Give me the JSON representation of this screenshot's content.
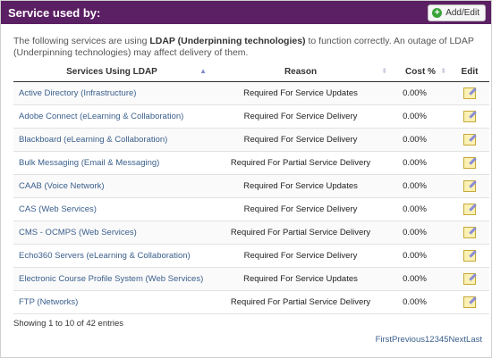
{
  "header": {
    "title": "Service used by:",
    "add_edit_label": "Add/Edit"
  },
  "description": {
    "before": "The following services are using ",
    "bold": "LDAP (Underpinning technologies)",
    "after": " to function correctly. An outage of LDAP (Underpinning technologies) may affect delivery of them."
  },
  "table": {
    "columns": {
      "service": "Services Using LDAP",
      "reason": "Reason",
      "cost": "Cost %",
      "edit": "Edit"
    },
    "rows": [
      {
        "service": "Active Directory (Infrastructure)",
        "reason": "Required For Service Updates",
        "cost": "0.00%"
      },
      {
        "service": "Adobe Connect (eLearning & Collaboration)",
        "reason": "Required For Service Delivery",
        "cost": "0.00%"
      },
      {
        "service": "Blackboard (eLearning & Collaboration)",
        "reason": "Required For Service Delivery",
        "cost": "0.00%"
      },
      {
        "service": "Bulk Messaging (Email & Messaging)",
        "reason": "Required For Partial Service Delivery",
        "cost": "0.00%"
      },
      {
        "service": "CAAB (Voice Network)",
        "reason": "Required For Service Updates",
        "cost": "0.00%"
      },
      {
        "service": "CAS (Web Services)",
        "reason": "Required For Service Delivery",
        "cost": "0.00%"
      },
      {
        "service": "CMS - OCMPS (Web Services)",
        "reason": "Required For Partial Service Delivery",
        "cost": "0.00%"
      },
      {
        "service": "Echo360 Servers (eLearning & Collaboration)",
        "reason": "Required For Service Delivery",
        "cost": "0.00%"
      },
      {
        "service": "Electronic Course Profile System (Web Services)",
        "reason": "Required For Service Updates",
        "cost": "0.00%"
      },
      {
        "service": "FTP (Networks)",
        "reason": "Required For Partial Service Delivery",
        "cost": "0.00%"
      }
    ]
  },
  "footer": {
    "info": "Showing 1 to 10 of 42 entries",
    "pager": [
      "First",
      "Previous",
      "1",
      "2",
      "3",
      "4",
      "5",
      "Next",
      "Last"
    ]
  },
  "colors": {
    "header_bg": "#5b1f63",
    "link": "#3a5f8c"
  }
}
